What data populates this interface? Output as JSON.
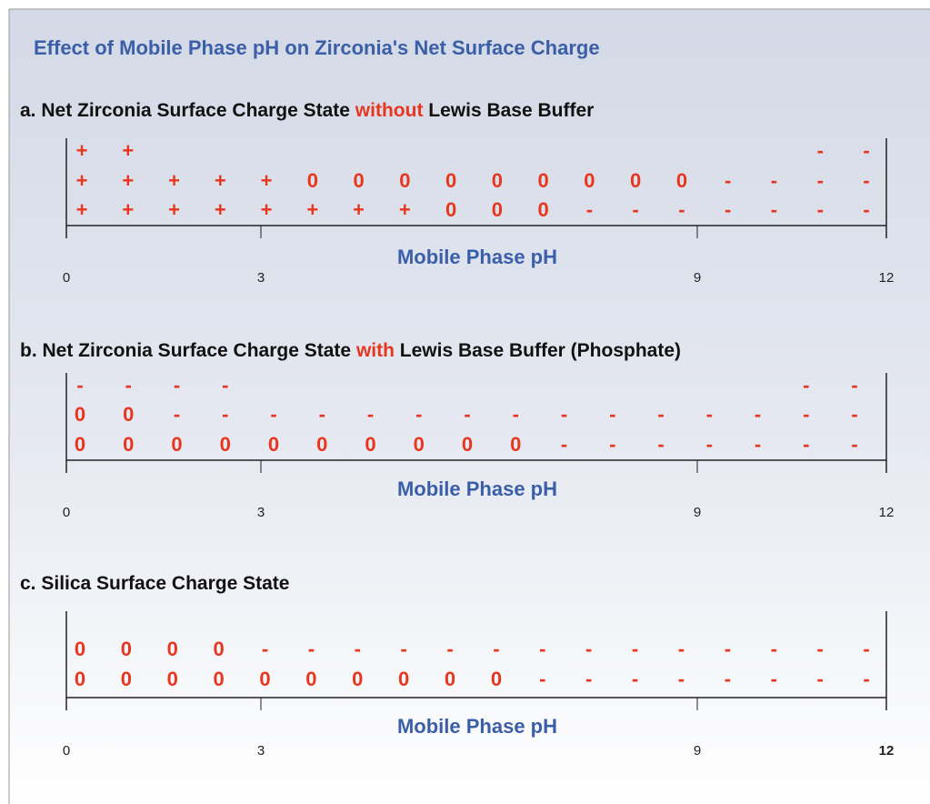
{
  "title": "Effect of Mobile Phase pH on Zirconia's Net Surface Charge",
  "panels": [
    {
      "title": {
        "prefix": "a. Net Zirconia Surface Charge State ",
        "highlight": "without",
        "suffix": " Lewis Base Buffer"
      },
      "rows": [
        [
          "+",
          "+",
          null,
          null,
          null,
          null,
          null,
          null,
          null,
          null,
          null,
          null,
          null,
          null,
          null,
          null,
          "-",
          "-"
        ],
        [
          "+",
          "+",
          "+",
          "+",
          "+",
          "0",
          "0",
          "0",
          "0",
          "0",
          "0",
          "0",
          "0",
          "0",
          "-",
          "-",
          "-",
          "-"
        ],
        [
          "+",
          "+",
          "+",
          "+",
          "+",
          "+",
          "+",
          "+",
          "0",
          "0",
          "0",
          "-",
          "-",
          "-",
          "-",
          "-",
          "-",
          "-"
        ]
      ],
      "axis_label": "Mobile Phase pH",
      "ticks": [
        "0",
        "3",
        "9",
        "12"
      ]
    },
    {
      "title": {
        "prefix": "b. Net Zirconia Surface Charge State ",
        "highlight": "with",
        "suffix": " Lewis Base Buffer (Phosphate)"
      },
      "rows": [
        [
          "-",
          "-",
          "-",
          "-",
          null,
          null,
          null,
          null,
          null,
          null,
          null,
          null,
          null,
          null,
          null,
          "-",
          "-"
        ],
        [
          "0",
          "0",
          "-",
          "-",
          "-",
          "-",
          "-",
          "-",
          "-",
          "-",
          "-",
          "-",
          "-",
          "-",
          "-",
          "-",
          "-"
        ],
        [
          "0",
          "0",
          "0",
          "0",
          "0",
          "0",
          "0",
          "0",
          "0",
          "0",
          "-",
          "-",
          "-",
          "-",
          "-",
          "-",
          "-"
        ]
      ],
      "axis_label": "Mobile Phase pH",
      "ticks": [
        "0",
        "3",
        "9",
        "12"
      ]
    },
    {
      "title": {
        "prefix": "c. Silica Surface Charge State"
      },
      "rows": [
        [
          "0",
          "0",
          "0",
          "0",
          "-",
          "-",
          "-",
          "-",
          "-",
          "-",
          "-",
          "-",
          "-",
          "-",
          "-",
          "-",
          "-",
          "-"
        ],
        [
          "0",
          "0",
          "0",
          "0",
          "0",
          "0",
          "0",
          "0",
          "0",
          "0",
          "-",
          "-",
          "-",
          "-",
          "-",
          "-",
          "-",
          "-"
        ]
      ],
      "axis_label": "Mobile Phase pH",
      "ticks": [
        "0",
        "3",
        "9",
        "12"
      ]
    }
  ]
}
